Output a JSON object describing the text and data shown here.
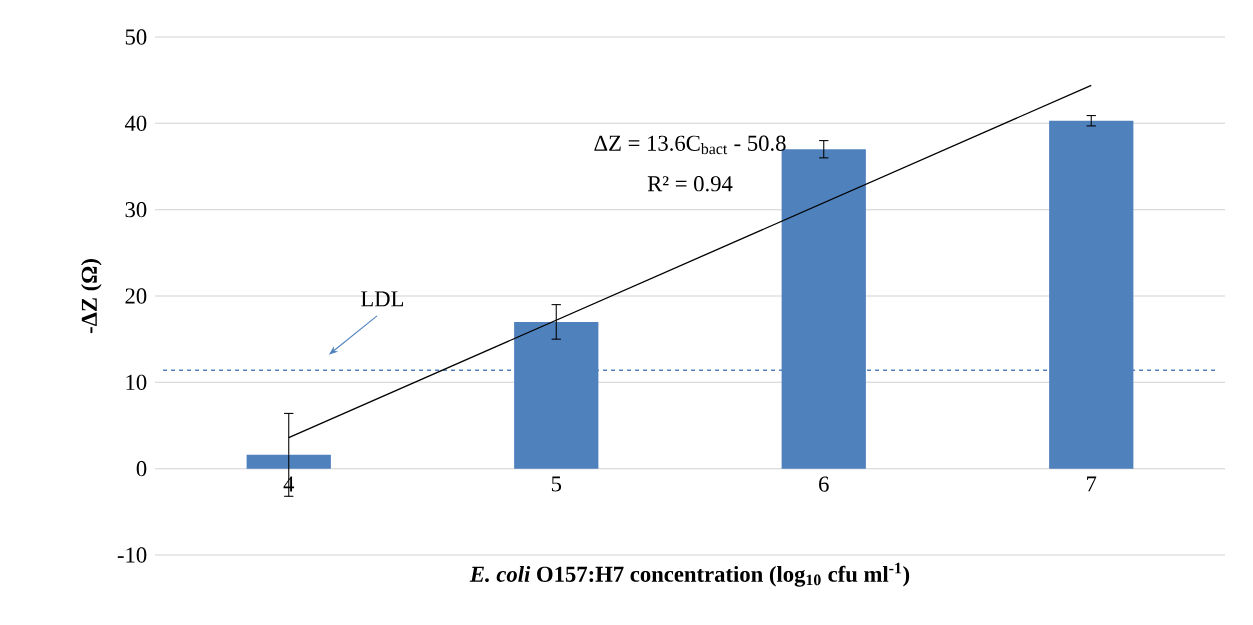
{
  "chart_data": {
    "type": "bar",
    "xlabel": "*E. coli* O157:H7 concentration (log$_{10}$ cfu ml$^{-1}$)",
    "ylabel": "-ΔZ (Ω)",
    "xlim": [
      3.5,
      7.5
    ],
    "xticks": [
      4,
      5,
      6,
      7
    ],
    "ylim": [
      -10,
      50
    ],
    "yticks": [
      -10,
      0,
      10,
      20,
      30,
      40,
      50
    ],
    "grid": "y",
    "series": [
      {
        "color": "#4f81bd",
        "x": [
          4,
          5,
          6,
          7
        ],
        "values": [
          1.6,
          17,
          37,
          40.3
        ],
        "errors": [
          4.8,
          2,
          1,
          0.6
        ]
      },
      {
        "type": "line",
        "color": "#000000",
        "x": [
          4,
          7
        ],
        "values": [
          3.6,
          44.4
        ]
      }
    ],
    "ref_lines": [
      {
        "axis": "y",
        "value": 11.4,
        "label": "LDL",
        "color": "#4f81bd",
        "line_style": "dashed"
      }
    ],
    "annotations": [
      "ΔZ = 13.6C$_{bact}$ - 50.8",
      "R² = 0.94"
    ]
  }
}
